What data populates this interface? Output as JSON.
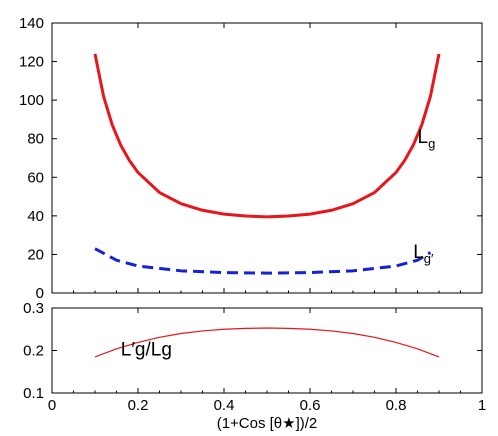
{
  "chart_data": [
    {
      "type": "line",
      "panel": "top",
      "title": "",
      "xlabel": "",
      "ylabel": "",
      "xlim": [
        0,
        1
      ],
      "ylim": [
        0,
        140
      ],
      "x_ticks": [
        "0",
        "0.2",
        "0.4",
        "0.6",
        "0.8",
        "1"
      ],
      "y_ticks": [
        "0",
        "20",
        "40",
        "60",
        "80",
        "100",
        "120",
        "140"
      ],
      "grid": false,
      "series": [
        {
          "name": "Lg",
          "label_main": "L",
          "label_sub": "g",
          "color": "#e8161b",
          "style": "solid",
          "x": [
            0.1,
            0.12,
            0.14,
            0.16,
            0.18,
            0.2,
            0.25,
            0.3,
            0.35,
            0.4,
            0.45,
            0.5,
            0.55,
            0.6,
            0.65,
            0.7,
            0.75,
            0.8,
            0.82,
            0.84,
            0.86,
            0.88,
            0.9
          ],
          "y": [
            124,
            101.9,
            87.2,
            76.6,
            68.7,
            62.5,
            52.1,
            46.3,
            42.9,
            40.9,
            39.9,
            39.5,
            39.9,
            40.9,
            42.9,
            46.3,
            52.1,
            62.5,
            68.7,
            76.6,
            87.2,
            101.9,
            124
          ]
        },
        {
          "name": "L'g",
          "label_main": "L",
          "label_sub": "g",
          "label_prime": "′",
          "color": "#1423d6",
          "style": "dashed",
          "x": [
            0.1,
            0.15,
            0.2,
            0.3,
            0.4,
            0.5,
            0.6,
            0.7,
            0.8,
            0.85,
            0.88
          ],
          "y": [
            23,
            17,
            14,
            11.5,
            10.6,
            10.3,
            10.6,
            11.5,
            14,
            17,
            21
          ]
        }
      ]
    },
    {
      "type": "line",
      "panel": "bottom",
      "title": "",
      "xlabel": "(1+Cos [θ★])/2",
      "ylabel": "",
      "xlim": [
        0,
        1
      ],
      "ylim": [
        0.1,
        0.3
      ],
      "x_ticks": [
        "0",
        "0.2",
        "0.4",
        "0.6",
        "0.8",
        "1"
      ],
      "y_ticks": [
        "0.1",
        "0.2",
        "0.3"
      ],
      "grid": false,
      "series": [
        {
          "name": "L'g/Lg",
          "label_text": "L′g/Lg",
          "color": "#e8161b",
          "style": "solid",
          "x": [
            0.1,
            0.15,
            0.2,
            0.25,
            0.3,
            0.35,
            0.4,
            0.45,
            0.5,
            0.55,
            0.6,
            0.65,
            0.7,
            0.75,
            0.8,
            0.85,
            0.9
          ],
          "y": [
            0.185,
            0.204,
            0.219,
            0.231,
            0.24,
            0.246,
            0.25,
            0.252,
            0.253,
            0.252,
            0.25,
            0.246,
            0.24,
            0.231,
            0.219,
            0.204,
            0.185
          ]
        }
      ]
    }
  ]
}
